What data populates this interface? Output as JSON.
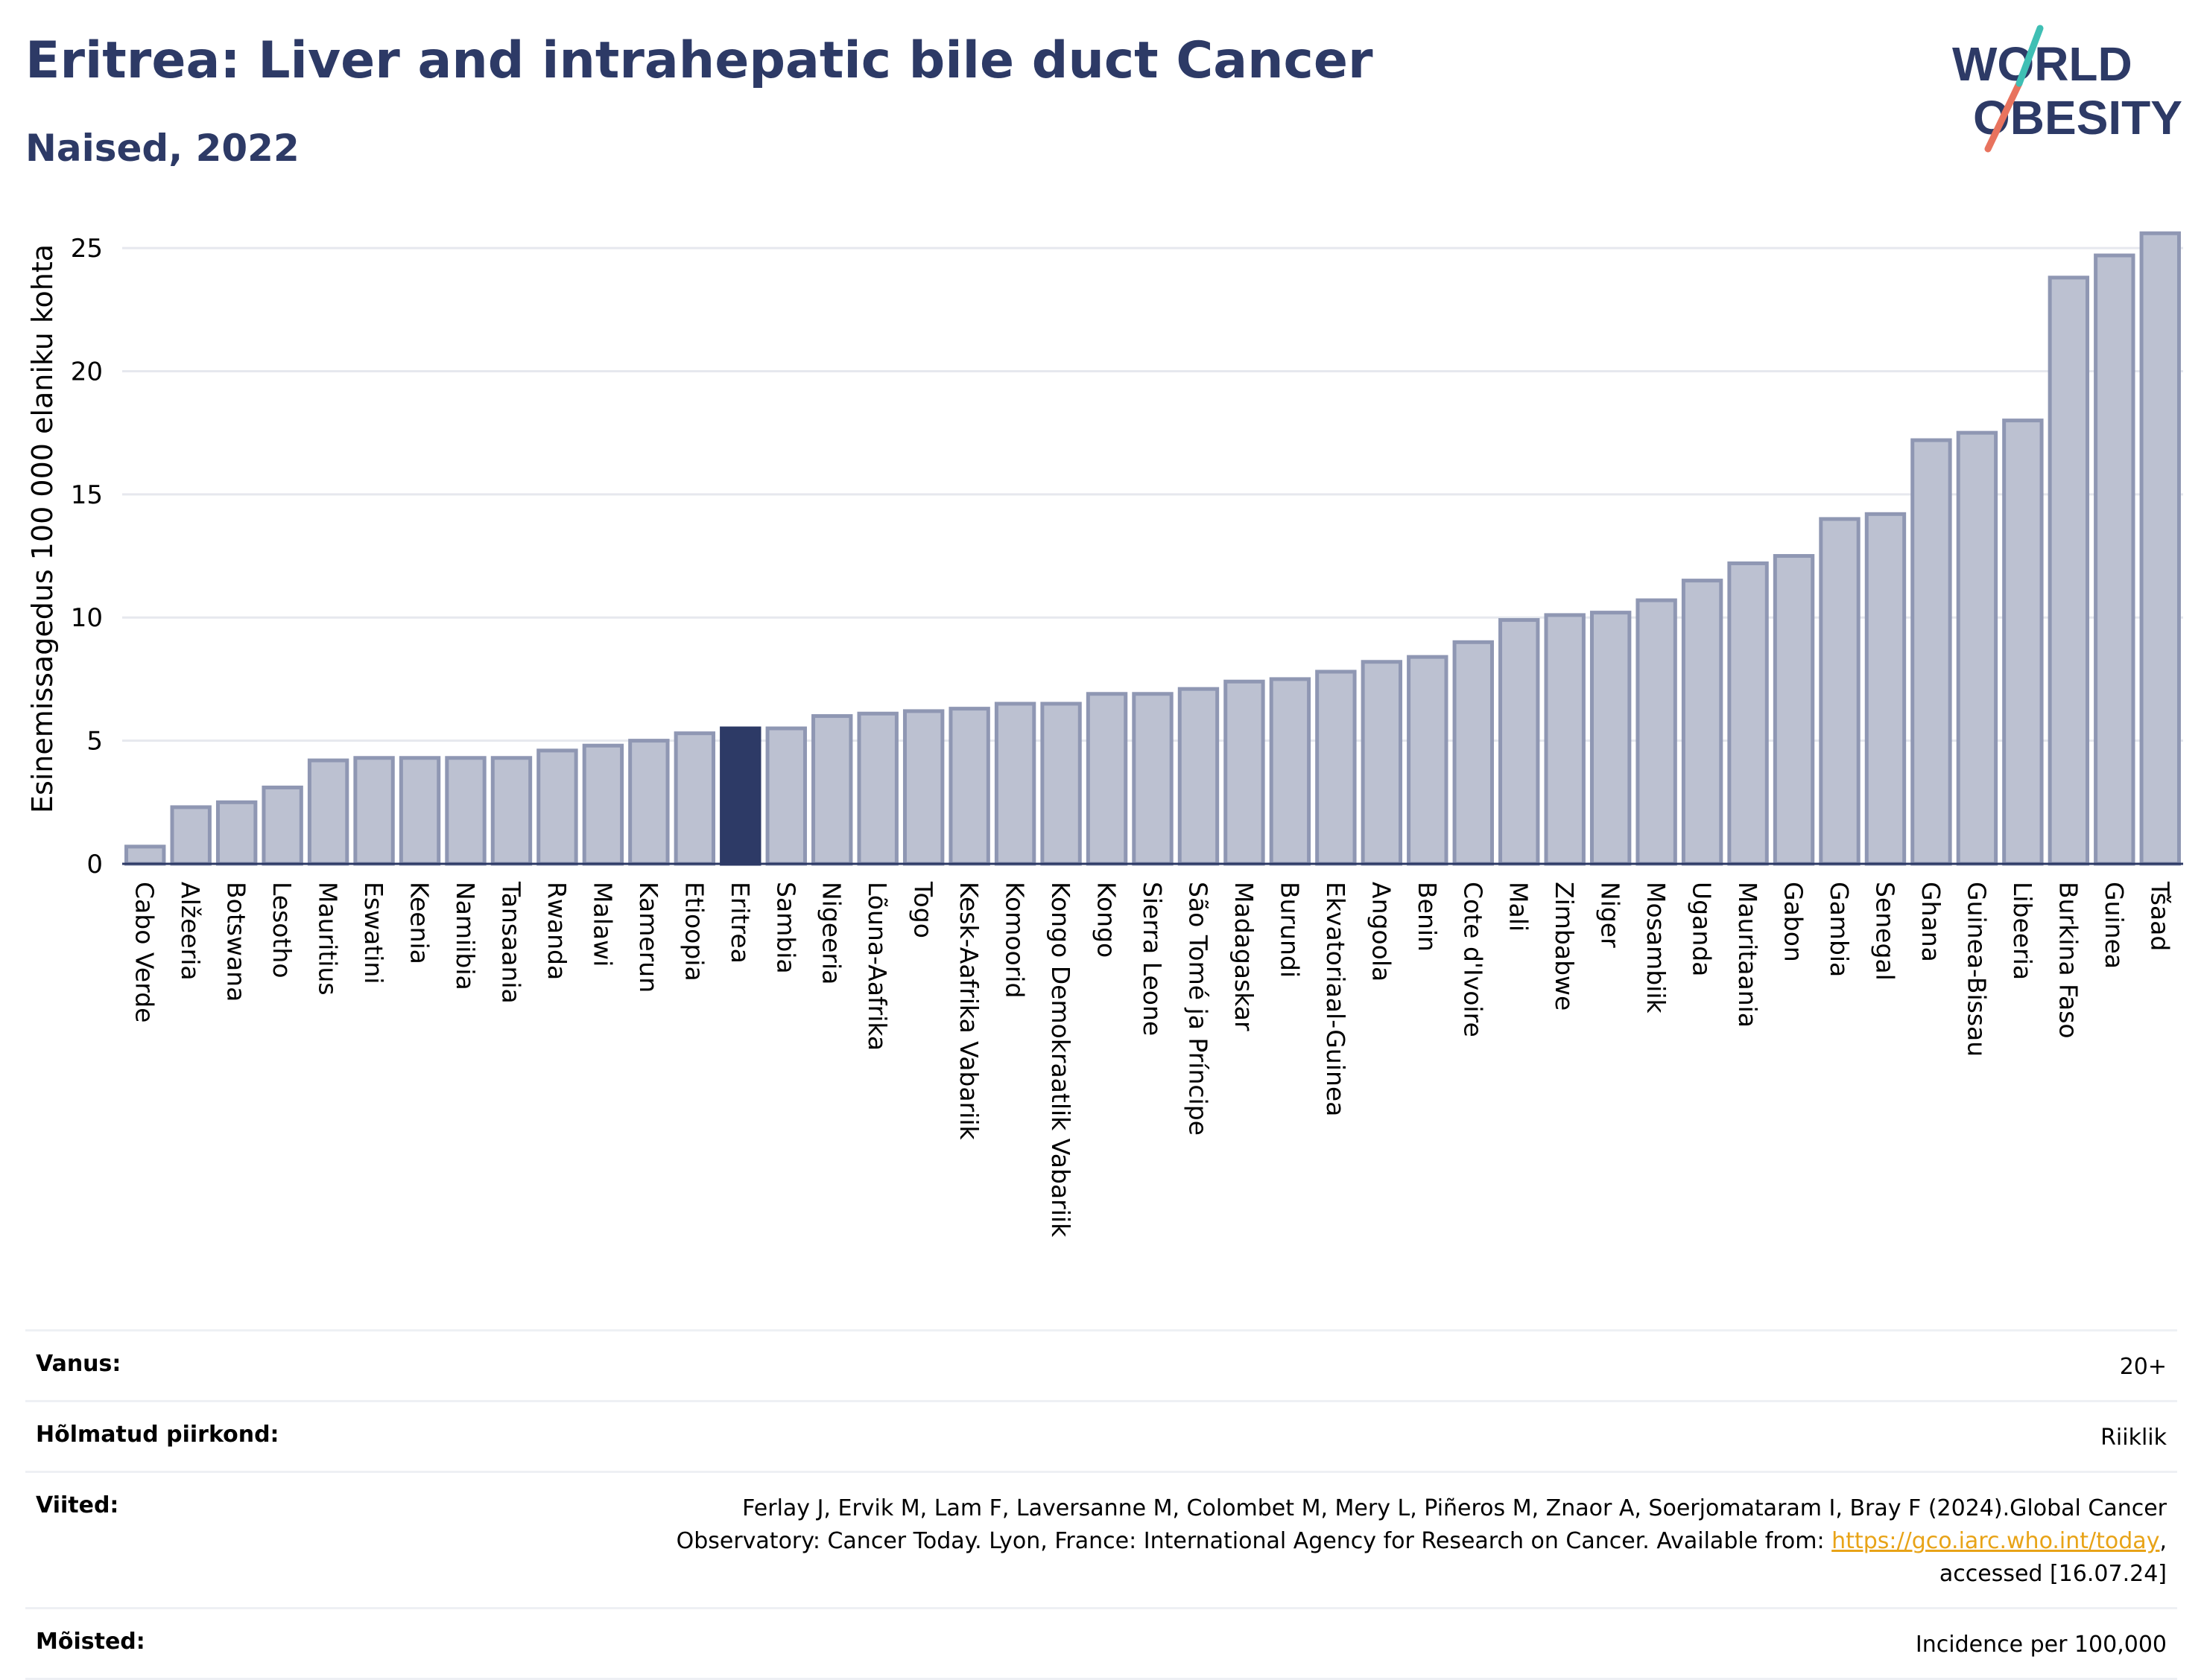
{
  "header": {
    "title": "Eritrea: Liver and intrahepatic bile duct Cancer",
    "subtitle": "Naised, 2022"
  },
  "logo": {
    "line1": "WORLD",
    "line2": "OBESITY"
  },
  "chart_data": {
    "type": "bar",
    "title": "Eritrea: Liver and intrahepatic bile duct Cancer",
    "subtitle": "Naised, 2022",
    "xlabel": "",
    "ylabel": "Esinemissagedus 100 000 elaniku kohta",
    "ylim": [
      0,
      26
    ],
    "yticks": [
      0,
      5,
      10,
      15,
      20,
      25
    ],
    "grid": true,
    "highlight": "Eritrea",
    "colors": {
      "bar": "#bcc1d1",
      "bar_border": "#8f97b3",
      "highlight": "#2d3a66"
    },
    "categories": [
      "Cabo Verde",
      "Alžeeria",
      "Botswana",
      "Lesotho",
      "Mauritius",
      "Eswatini",
      "Keenia",
      "Namiibia",
      "Tansaania",
      "Rwanda",
      "Malawi",
      "Kamerun",
      "Etioopia",
      "Eritrea",
      "Sambia",
      "Nigeeria",
      "Lõuna-Aafrika",
      "Togo",
      "Kesk-Aafrika Vabariik",
      "Komoorid",
      "Kongo Demokraatlik Vabariik",
      "Kongo",
      "Sierra Leone",
      "São Tomé ja Príncipe",
      "Madagaskar",
      "Burundi",
      "Ekvatoriaal-Guinea",
      "Angoola",
      "Benin",
      "Cote d'Ivoire",
      "Mali",
      "Zimbabwe",
      "Niger",
      "Mosambiik",
      "Uganda",
      "Mauritaania",
      "Gabon",
      "Gambia",
      "Senegal",
      "Ghana",
      "Guinea-Bissau",
      "Libeeria",
      "Burkina Faso",
      "Guinea",
      "Tšaad"
    ],
    "values": [
      0.7,
      2.3,
      2.5,
      3.1,
      4.2,
      4.3,
      4.3,
      4.3,
      4.3,
      4.6,
      4.8,
      5.0,
      5.3,
      5.5,
      5.5,
      6.0,
      6.1,
      6.2,
      6.3,
      6.5,
      6.5,
      6.9,
      6.9,
      7.1,
      7.4,
      7.5,
      7.8,
      8.2,
      8.4,
      9.0,
      9.9,
      10.1,
      10.2,
      10.7,
      11.5,
      12.2,
      12.5,
      14.0,
      14.2,
      17.2,
      17.5,
      18.0,
      23.8,
      24.7,
      25.6
    ]
  },
  "info": {
    "rows": [
      {
        "key": "Vanus:",
        "value": "20+"
      },
      {
        "key": "Hõlmatud piirkond:",
        "value": "Riiklik"
      },
      {
        "key": "Viited:",
        "value_part1": "Ferlay J, Ervik M, Lam F, Laversanne M, Colombet M, Mery L, Piñeros M, Znaor A, Soerjomataram I, Bray F (2024).Global Cancer",
        "value_part2": "Observatory: Cancer Today. Lyon, France: International Agency for Research on Cancer. Available from: ",
        "link": "https://gco.iarc.who.int/today",
        "value_part3": ",",
        "value_part4": "accessed [16.07.24]"
      },
      {
        "key": "Mõisted:",
        "value": "Incidence per 100,000"
      }
    ]
  }
}
